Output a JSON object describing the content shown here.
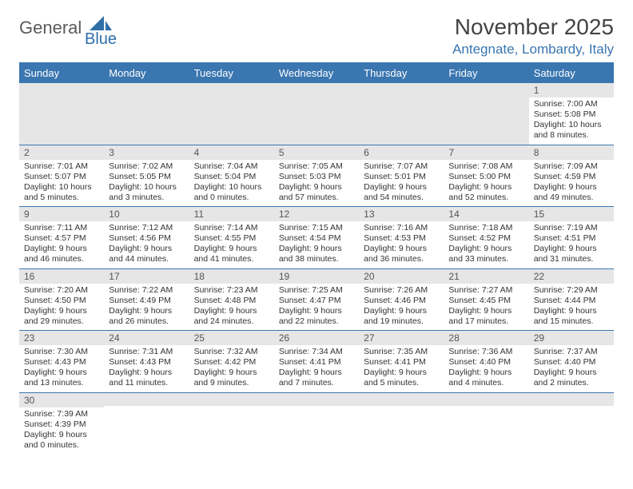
{
  "header": {
    "logo_general": "General",
    "logo_blue": "Blue",
    "month_title": "November 2025",
    "location": "Antegnate, Lombardy, Italy"
  },
  "colors": {
    "accent": "#3a76b0",
    "header_bg": "#3a76b0",
    "daynum_bg": "#e6e6e6",
    "text": "#333333",
    "logo_gray": "#5a5a5a"
  },
  "weekdays": [
    "Sunday",
    "Monday",
    "Tuesday",
    "Wednesday",
    "Thursday",
    "Friday",
    "Saturday"
  ],
  "weeks": [
    [
      {
        "n": "",
        "sunrise": "",
        "sunset": "",
        "daylight": ""
      },
      {
        "n": "",
        "sunrise": "",
        "sunset": "",
        "daylight": ""
      },
      {
        "n": "",
        "sunrise": "",
        "sunset": "",
        "daylight": ""
      },
      {
        "n": "",
        "sunrise": "",
        "sunset": "",
        "daylight": ""
      },
      {
        "n": "",
        "sunrise": "",
        "sunset": "",
        "daylight": ""
      },
      {
        "n": "",
        "sunrise": "",
        "sunset": "",
        "daylight": ""
      },
      {
        "n": "1",
        "sunrise": "Sunrise: 7:00 AM",
        "sunset": "Sunset: 5:08 PM",
        "daylight": "Daylight: 10 hours and 8 minutes."
      }
    ],
    [
      {
        "n": "2",
        "sunrise": "Sunrise: 7:01 AM",
        "sunset": "Sunset: 5:07 PM",
        "daylight": "Daylight: 10 hours and 5 minutes."
      },
      {
        "n": "3",
        "sunrise": "Sunrise: 7:02 AM",
        "sunset": "Sunset: 5:05 PM",
        "daylight": "Daylight: 10 hours and 3 minutes."
      },
      {
        "n": "4",
        "sunrise": "Sunrise: 7:04 AM",
        "sunset": "Sunset: 5:04 PM",
        "daylight": "Daylight: 10 hours and 0 minutes."
      },
      {
        "n": "5",
        "sunrise": "Sunrise: 7:05 AM",
        "sunset": "Sunset: 5:03 PM",
        "daylight": "Daylight: 9 hours and 57 minutes."
      },
      {
        "n": "6",
        "sunrise": "Sunrise: 7:07 AM",
        "sunset": "Sunset: 5:01 PM",
        "daylight": "Daylight: 9 hours and 54 minutes."
      },
      {
        "n": "7",
        "sunrise": "Sunrise: 7:08 AM",
        "sunset": "Sunset: 5:00 PM",
        "daylight": "Daylight: 9 hours and 52 minutes."
      },
      {
        "n": "8",
        "sunrise": "Sunrise: 7:09 AM",
        "sunset": "Sunset: 4:59 PM",
        "daylight": "Daylight: 9 hours and 49 minutes."
      }
    ],
    [
      {
        "n": "9",
        "sunrise": "Sunrise: 7:11 AM",
        "sunset": "Sunset: 4:57 PM",
        "daylight": "Daylight: 9 hours and 46 minutes."
      },
      {
        "n": "10",
        "sunrise": "Sunrise: 7:12 AM",
        "sunset": "Sunset: 4:56 PM",
        "daylight": "Daylight: 9 hours and 44 minutes."
      },
      {
        "n": "11",
        "sunrise": "Sunrise: 7:14 AM",
        "sunset": "Sunset: 4:55 PM",
        "daylight": "Daylight: 9 hours and 41 minutes."
      },
      {
        "n": "12",
        "sunrise": "Sunrise: 7:15 AM",
        "sunset": "Sunset: 4:54 PM",
        "daylight": "Daylight: 9 hours and 38 minutes."
      },
      {
        "n": "13",
        "sunrise": "Sunrise: 7:16 AM",
        "sunset": "Sunset: 4:53 PM",
        "daylight": "Daylight: 9 hours and 36 minutes."
      },
      {
        "n": "14",
        "sunrise": "Sunrise: 7:18 AM",
        "sunset": "Sunset: 4:52 PM",
        "daylight": "Daylight: 9 hours and 33 minutes."
      },
      {
        "n": "15",
        "sunrise": "Sunrise: 7:19 AM",
        "sunset": "Sunset: 4:51 PM",
        "daylight": "Daylight: 9 hours and 31 minutes."
      }
    ],
    [
      {
        "n": "16",
        "sunrise": "Sunrise: 7:20 AM",
        "sunset": "Sunset: 4:50 PM",
        "daylight": "Daylight: 9 hours and 29 minutes."
      },
      {
        "n": "17",
        "sunrise": "Sunrise: 7:22 AM",
        "sunset": "Sunset: 4:49 PM",
        "daylight": "Daylight: 9 hours and 26 minutes."
      },
      {
        "n": "18",
        "sunrise": "Sunrise: 7:23 AM",
        "sunset": "Sunset: 4:48 PM",
        "daylight": "Daylight: 9 hours and 24 minutes."
      },
      {
        "n": "19",
        "sunrise": "Sunrise: 7:25 AM",
        "sunset": "Sunset: 4:47 PM",
        "daylight": "Daylight: 9 hours and 22 minutes."
      },
      {
        "n": "20",
        "sunrise": "Sunrise: 7:26 AM",
        "sunset": "Sunset: 4:46 PM",
        "daylight": "Daylight: 9 hours and 19 minutes."
      },
      {
        "n": "21",
        "sunrise": "Sunrise: 7:27 AM",
        "sunset": "Sunset: 4:45 PM",
        "daylight": "Daylight: 9 hours and 17 minutes."
      },
      {
        "n": "22",
        "sunrise": "Sunrise: 7:29 AM",
        "sunset": "Sunset: 4:44 PM",
        "daylight": "Daylight: 9 hours and 15 minutes."
      }
    ],
    [
      {
        "n": "23",
        "sunrise": "Sunrise: 7:30 AM",
        "sunset": "Sunset: 4:43 PM",
        "daylight": "Daylight: 9 hours and 13 minutes."
      },
      {
        "n": "24",
        "sunrise": "Sunrise: 7:31 AM",
        "sunset": "Sunset: 4:43 PM",
        "daylight": "Daylight: 9 hours and 11 minutes."
      },
      {
        "n": "25",
        "sunrise": "Sunrise: 7:32 AM",
        "sunset": "Sunset: 4:42 PM",
        "daylight": "Daylight: 9 hours and 9 minutes."
      },
      {
        "n": "26",
        "sunrise": "Sunrise: 7:34 AM",
        "sunset": "Sunset: 4:41 PM",
        "daylight": "Daylight: 9 hours and 7 minutes."
      },
      {
        "n": "27",
        "sunrise": "Sunrise: 7:35 AM",
        "sunset": "Sunset: 4:41 PM",
        "daylight": "Daylight: 9 hours and 5 minutes."
      },
      {
        "n": "28",
        "sunrise": "Sunrise: 7:36 AM",
        "sunset": "Sunset: 4:40 PM",
        "daylight": "Daylight: 9 hours and 4 minutes."
      },
      {
        "n": "29",
        "sunrise": "Sunrise: 7:37 AM",
        "sunset": "Sunset: 4:40 PM",
        "daylight": "Daylight: 9 hours and 2 minutes."
      }
    ],
    [
      {
        "n": "30",
        "sunrise": "Sunrise: 7:39 AM",
        "sunset": "Sunset: 4:39 PM",
        "daylight": "Daylight: 9 hours and 0 minutes."
      },
      {
        "n": "",
        "sunrise": "",
        "sunset": "",
        "daylight": ""
      },
      {
        "n": "",
        "sunrise": "",
        "sunset": "",
        "daylight": ""
      },
      {
        "n": "",
        "sunrise": "",
        "sunset": "",
        "daylight": ""
      },
      {
        "n": "",
        "sunrise": "",
        "sunset": "",
        "daylight": ""
      },
      {
        "n": "",
        "sunrise": "",
        "sunset": "",
        "daylight": ""
      },
      {
        "n": "",
        "sunrise": "",
        "sunset": "",
        "daylight": ""
      }
    ]
  ]
}
